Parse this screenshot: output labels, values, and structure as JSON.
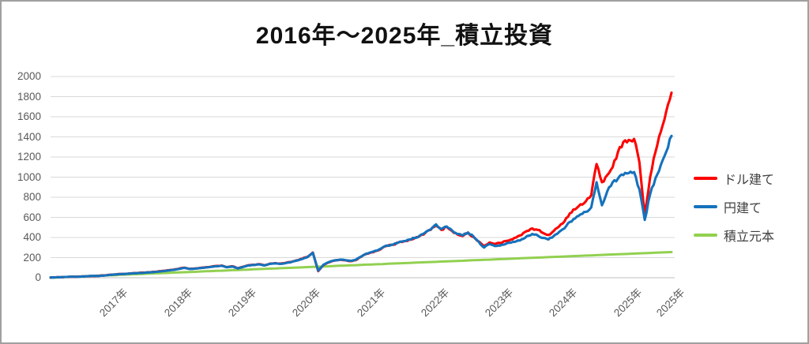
{
  "chart_data": {
    "type": "line",
    "title": "2016年～2025年_積立投資",
    "xlabel": "",
    "ylabel": "",
    "x_unit": "month",
    "x_start": "2016-01",
    "x_end": "2025-09",
    "ylim": [
      0,
      2000
    ],
    "y_tick_step": 200,
    "y_ticks": [
      "0",
      "200",
      "400",
      "600",
      "800",
      "1000",
      "1200",
      "1400",
      "1600",
      "1800",
      "2000"
    ],
    "x_tick_months": [
      12,
      24,
      36,
      48,
      60,
      72,
      84,
      96,
      108,
      116
    ],
    "x_tick_labels": [
      "2017年",
      "2018年",
      "2019年",
      "2020年",
      "2021年",
      "2022年",
      "2023年",
      "2024年",
      "2025年",
      "2025年"
    ],
    "grid": "horizontal",
    "legend_position": "right",
    "axis_color": "#bfbfbf",
    "grid_color": "#d9d9d9",
    "tick_label_color": "#595959",
    "series": [
      {
        "name": "ドル建て",
        "color": "#ff0000",
        "values": [
          2,
          4,
          6,
          8,
          9,
          10,
          13,
          15,
          17,
          18,
          23,
          29,
          33,
          37,
          39,
          43,
          46,
          50,
          53,
          57,
          62,
          68,
          74,
          80,
          90,
          100,
          88,
          92,
          98,
          104,
          110,
          117,
          121,
          106,
          114,
          94,
          110,
          124,
          128,
          135,
          124,
          140,
          145,
          141,
          149,
          158,
          173,
          189,
          208,
          250,
          65,
          128,
          152,
          170,
          178,
          174,
          165,
          175,
          207,
          237,
          252,
          268,
          298,
          318,
          328,
          350,
          362,
          378,
          392,
          416,
          446,
          475,
          520,
          475,
          505,
          465,
          430,
          415,
          445,
          405,
          360,
          315,
          350,
          335,
          345,
          365,
          380,
          400,
          425,
          465,
          490,
          475,
          445,
          425,
          465,
          510,
          560,
          640,
          680,
          730,
          760,
          820,
          1130,
          950,
          1020,
          1100,
          1250,
          1350,
          1370,
          1380,
          1150,
          620,
          1000,
          1250,
          1450,
          1650,
          1840
        ]
      },
      {
        "name": "円建て",
        "color": "#1572bc",
        "values": [
          2,
          4,
          5,
          8,
          10,
          9,
          13,
          16,
          18,
          17,
          22,
          28,
          32,
          36,
          38,
          42,
          45,
          48,
          52,
          55,
          60,
          66,
          72,
          78,
          88,
          98,
          86,
          90,
          96,
          102,
          108,
          114,
          118,
          104,
          112,
          92,
          108,
          122,
          126,
          132,
          122,
          138,
          142,
          138,
          146,
          156,
          170,
          186,
          205,
          248,
          70,
          130,
          155,
          172,
          180,
          176,
          168,
          178,
          210,
          240,
          255,
          270,
          300,
          320,
          330,
          352,
          365,
          380,
          395,
          420,
          450,
          480,
          530,
          485,
          510,
          470,
          435,
          420,
          450,
          410,
          355,
          300,
          335,
          315,
          320,
          335,
          348,
          362,
          382,
          415,
          435,
          420,
          395,
          380,
          415,
          455,
          490,
          555,
          590,
          630,
          655,
          700,
          950,
          720,
          860,
          950,
          985,
          1020,
          1040,
          1050,
          880,
          575,
          830,
          990,
          1120,
          1250,
          1410
        ]
      },
      {
        "name": "積立元本",
        "color": "#92d050",
        "values": [
          0,
          2,
          4,
          7,
          9,
          11,
          13,
          15,
          18,
          20,
          22,
          24,
          26,
          29,
          31,
          33,
          35,
          37,
          40,
          42,
          44,
          46,
          48,
          51,
          53,
          55,
          57,
          59,
          62,
          64,
          66,
          68,
          70,
          73,
          75,
          77,
          79,
          81,
          84,
          86,
          88,
          90,
          92,
          95,
          97,
          99,
          101,
          103,
          106,
          108,
          110,
          112,
          114,
          117,
          119,
          121,
          123,
          125,
          128,
          130,
          132,
          134,
          136,
          139,
          141,
          143,
          145,
          147,
          150,
          152,
          154,
          156,
          158,
          161,
          163,
          165,
          167,
          169,
          172,
          174,
          176,
          178,
          180,
          183,
          185,
          187,
          189,
          191,
          194,
          196,
          198,
          200,
          202,
          205,
          207,
          209,
          211,
          213,
          216,
          218,
          220,
          222,
          224,
          227,
          229,
          231,
          233,
          235,
          238,
          240,
          242,
          244,
          246,
          249,
          251,
          253,
          255
        ]
      }
    ]
  }
}
